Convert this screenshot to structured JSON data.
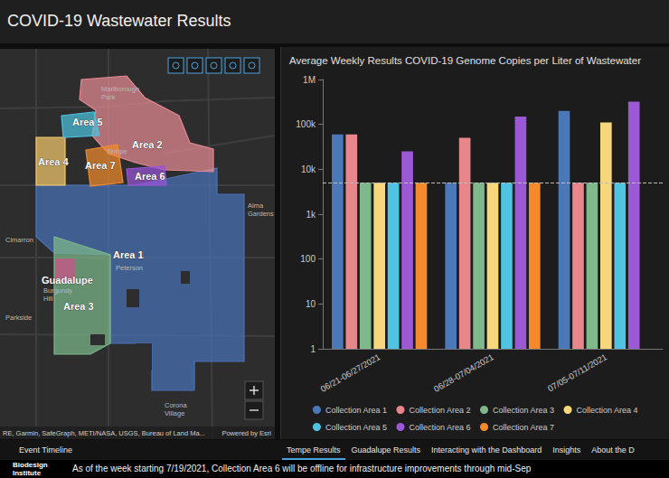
{
  "header": {
    "title": "COVID-19 Wastewater Results"
  },
  "map": {
    "areas": [
      {
        "label": "Area 1",
        "color": "#4a72b8"
      },
      {
        "label": "Area 2",
        "color": "#e58a93"
      },
      {
        "label": "Area 3",
        "color": "#7db88a"
      },
      {
        "label": "Area 4",
        "color": "#f2c96b"
      },
      {
        "label": "Area 5",
        "color": "#4cc0dd"
      },
      {
        "label": "Area 6",
        "color": "#9a55d8"
      },
      {
        "label": "Area 7",
        "color": "#f08a2c"
      },
      {
        "label": "Guadalupe",
        "color": "#d0508a"
      }
    ],
    "places": [
      [
        "Marlborough",
        "Park"
      ],
      [
        "Tempe"
      ],
      [
        "Alma",
        "Gardens"
      ],
      [
        "Cimarron"
      ],
      [
        "Peterson"
      ],
      [
        "Burgundy",
        "Hill"
      ],
      [
        "Parkside"
      ],
      [
        "Corona",
        "Village"
      ]
    ],
    "attribution": "RE, Garmin, SafeGraph, METI/NASA, USGS, Bureau of Land Ma...",
    "credit": "Powered by Esri"
  },
  "chart_data": {
    "type": "bar",
    "title": "Average Weekly Results COVID-19 Genome Copies per Liter of Wastewater",
    "categories": [
      "06/21-06/27/2021",
      "06/28-07/04/2021",
      "07/05-07/11/2021"
    ],
    "series": [
      {
        "name": "Collection Area 1",
        "color": "#4a78b8",
        "values": [
          60000,
          5000,
          200000
        ]
      },
      {
        "name": "Collection Area 2",
        "color": "#e8868c",
        "values": [
          60000,
          50000,
          5000
        ]
      },
      {
        "name": "Collection Area 3",
        "color": "#7fb88a",
        "values": [
          5000,
          5000,
          5000
        ]
      },
      {
        "name": "Collection Area 4",
        "color": "#f6d77c",
        "values": [
          5000,
          5000,
          110000
        ]
      },
      {
        "name": "Collection Area 5",
        "color": "#4fc3e0",
        "values": [
          5000,
          5000,
          5000
        ]
      },
      {
        "name": "Collection Area 6",
        "color": "#9b59d6",
        "values": [
          25000,
          150000,
          320000
        ]
      },
      {
        "name": "Collection Area 7",
        "color": "#f58a2c",
        "values": [
          5000,
          5000,
          null
        ]
      }
    ],
    "log": "y",
    "ylim": [
      1,
      1000000
    ],
    "yticks": [
      1,
      10,
      100,
      {
        "value": 1000,
        "label": "1k"
      },
      {
        "value": 10000,
        "label": "10k"
      },
      {
        "value": 100000,
        "label": "100k"
      },
      {
        "value": 1000000,
        "label": "1M"
      }
    ],
    "reference_line": 5000,
    "grid": false,
    "legend": "bottom"
  },
  "tabs": {
    "left": [
      "Event Timeline"
    ],
    "right": [
      "Tempe Results",
      "Guadalupe Results",
      "Interacting with the Dashboard",
      "Insights",
      "About the D"
    ],
    "active": "Tempe Results"
  },
  "footer": {
    "logo": [
      "Biodesign",
      "Institute"
    ],
    "ticker": "As of the week starting 7/19/2021, Collection Area 6 will be offline for infrastructure improvements through mid-Sep"
  }
}
